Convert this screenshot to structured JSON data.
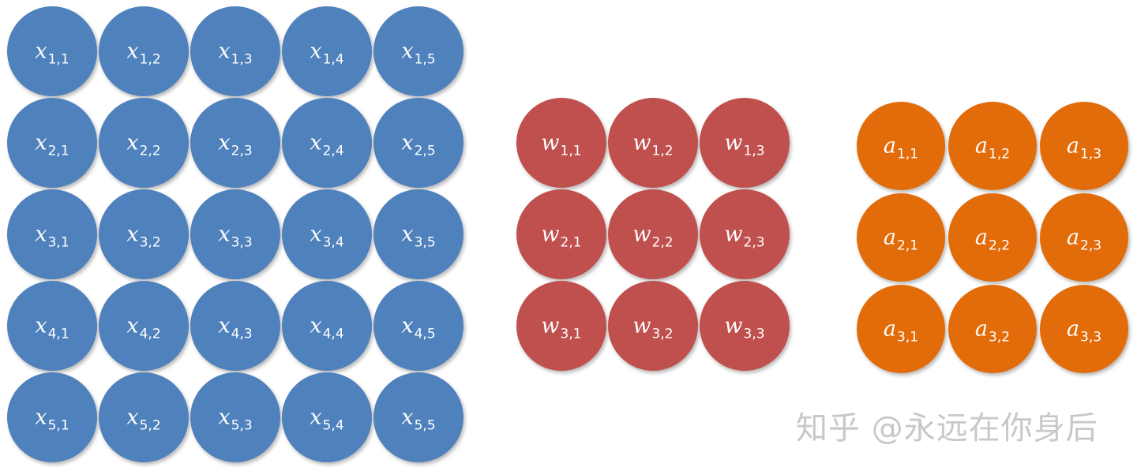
{
  "matrices": [
    {
      "name": "x",
      "rows": 5,
      "cols": 5,
      "color": "#4f81bd",
      "labels": [
        [
          "x",
          "1,1"
        ],
        [
          "x",
          "1,2"
        ],
        [
          "x",
          "1,3"
        ],
        [
          "x",
          "1,4"
        ],
        [
          "x",
          "1,5"
        ],
        [
          "x",
          "2,1"
        ],
        [
          "x",
          "2,2"
        ],
        [
          "x",
          "2,3"
        ],
        [
          "x",
          "2,4"
        ],
        [
          "x",
          "2,5"
        ],
        [
          "x",
          "3,1"
        ],
        [
          "x",
          "3,2"
        ],
        [
          "x",
          "3,3"
        ],
        [
          "x",
          "3,4"
        ],
        [
          "x",
          "3,5"
        ],
        [
          "x",
          "4,1"
        ],
        [
          "x",
          "4,2"
        ],
        [
          "x",
          "4,3"
        ],
        [
          "x",
          "4,4"
        ],
        [
          "x",
          "4,5"
        ],
        [
          "x",
          "5,1"
        ],
        [
          "x",
          "5,2"
        ],
        [
          "x",
          "5,3"
        ],
        [
          "x",
          "5,4"
        ],
        [
          "x",
          "5,5"
        ]
      ]
    },
    {
      "name": "w",
      "rows": 3,
      "cols": 3,
      "color": "#c0504d",
      "labels": [
        [
          "w",
          "1,1"
        ],
        [
          "w",
          "1,2"
        ],
        [
          "w",
          "1,3"
        ],
        [
          "w",
          "2,1"
        ],
        [
          "w",
          "2,2"
        ],
        [
          "w",
          "2,3"
        ],
        [
          "w",
          "3,1"
        ],
        [
          "w",
          "3,2"
        ],
        [
          "w",
          "3,3"
        ]
      ]
    },
    {
      "name": "a",
      "rows": 3,
      "cols": 3,
      "color": "#e36c0a",
      "labels": [
        [
          "a",
          "1,1"
        ],
        [
          "a",
          "1,2"
        ],
        [
          "a",
          "1,3"
        ],
        [
          "a",
          "2,1"
        ],
        [
          "a",
          "2,2"
        ],
        [
          "a",
          "2,3"
        ],
        [
          "a",
          "3,1"
        ],
        [
          "a",
          "3,2"
        ],
        [
          "a",
          "3,3"
        ]
      ]
    }
  ],
  "watermark": "知乎 @永远在你身后"
}
